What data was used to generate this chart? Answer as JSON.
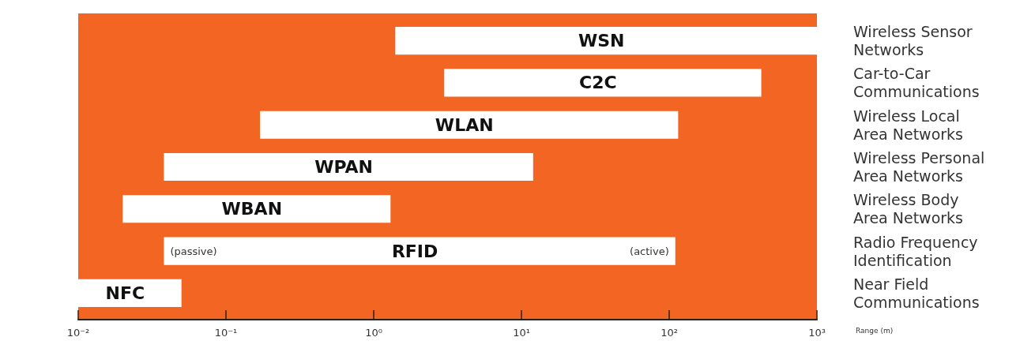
{
  "chart_data": {
    "type": "bar",
    "orientation": "horizontal",
    "log": "x",
    "categories": [
      "Wireless Sensor\nNetworks",
      "Car-to-Car\nCommunications",
      "Wireless Local\nArea Networks",
      "Wireless Personal\nArea Networks",
      "Wireless Body\nArea Networks",
      "Radio Frequency\nIdentification",
      "Near Field\nCommunications"
    ],
    "base": [
      1.4,
      3,
      0.17,
      0.038,
      0.02,
      0.038,
      0.01
    ],
    "values": [
      998.6,
      417,
      114.83,
      11.962,
      1.28,
      109.962,
      0.04
    ],
    "value_labels": [
      "WSN",
      "C2C",
      "WLAN",
      "WPAN",
      "WBAN",
      "RFID",
      "NFC"
    ],
    "color": "#ffffff",
    "xlim": [
      0.01,
      1000
    ],
    "xticks": [
      {
        "value": 0.01,
        "label": "10⁻²"
      },
      {
        "value": 0.1,
        "label": "10⁻¹"
      },
      {
        "value": 1,
        "label": "10⁰"
      },
      {
        "value": 10,
        "label": "10¹"
      },
      {
        "value": 100,
        "label": "10²"
      },
      {
        "value": 1000,
        "label": "10³"
      }
    ],
    "xlabel": "Range (m)",
    "annotations": [
      {
        "text": "(passive)",
        "x": 0.038,
        "y": "Radio Frequency\nIdentification"
      },
      {
        "text": "(active)",
        "x": 110,
        "y": "Radio Frequency\nIdentification"
      }
    ]
  }
}
